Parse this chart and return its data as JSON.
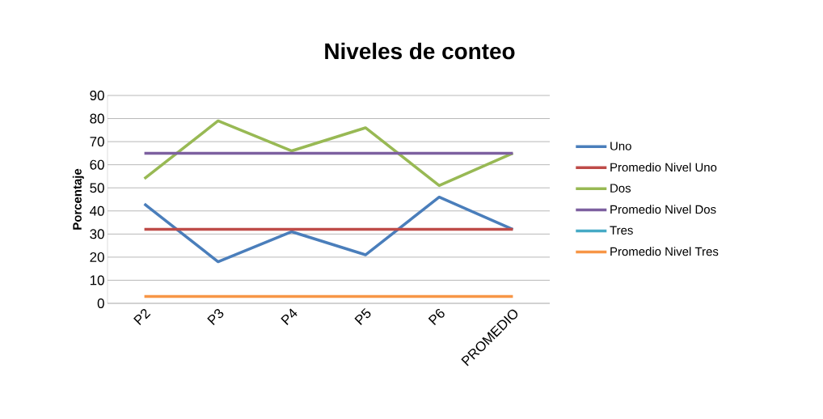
{
  "chart_data": {
    "type": "line",
    "title": "Niveles de conteo",
    "ylabel": "Porcentaje",
    "categories": [
      "P2",
      "P3",
      "P4",
      "P5",
      "P6",
      "PROMEDIO"
    ],
    "series": [
      {
        "name": "Uno",
        "color": "#4a7ebb",
        "values": [
          43,
          18,
          31,
          21,
          46,
          32
        ]
      },
      {
        "name": "Promedio Nivel Uno",
        "color": "#be4b48",
        "values": [
          32,
          32,
          32,
          32,
          32,
          32
        ]
      },
      {
        "name": "Dos",
        "color": "#98b954",
        "values": [
          54,
          79,
          66,
          76,
          51,
          65
        ]
      },
      {
        "name": "Promedio Nivel Dos",
        "color": "#7d60a0",
        "values": [
          65,
          65,
          65,
          65,
          65,
          65
        ]
      },
      {
        "name": "Tres",
        "color": "#46aac5",
        "values": [
          null,
          null,
          null,
          null,
          null,
          null
        ]
      },
      {
        "name": "Promedio Nivel Tres",
        "color": "#f79646",
        "values": [
          3,
          3,
          3,
          3,
          3,
          3
        ]
      }
    ],
    "ylim": [
      0,
      90
    ],
    "yticks": [
      0,
      10,
      20,
      30,
      40,
      50,
      60,
      70,
      80,
      90
    ],
    "grid": "y",
    "legend": "right",
    "marker": "none",
    "line_style": "solid"
  }
}
